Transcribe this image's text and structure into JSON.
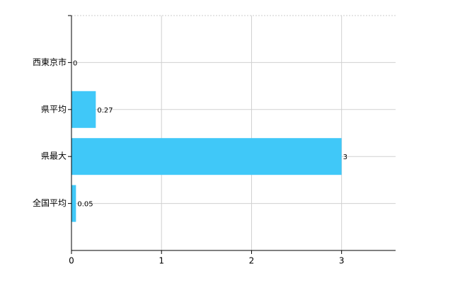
{
  "chart_data": {
    "type": "bar",
    "orientation": "horizontal",
    "categories": [
      "西東京市",
      "県平均",
      "県最大",
      "全国平均"
    ],
    "values": [
      0,
      0.27,
      3,
      0.05
    ],
    "color": "#40c8f8",
    "xlim": [
      0,
      3.6
    ],
    "xticks": [
      0,
      1,
      2,
      3
    ],
    "grid": true
  }
}
